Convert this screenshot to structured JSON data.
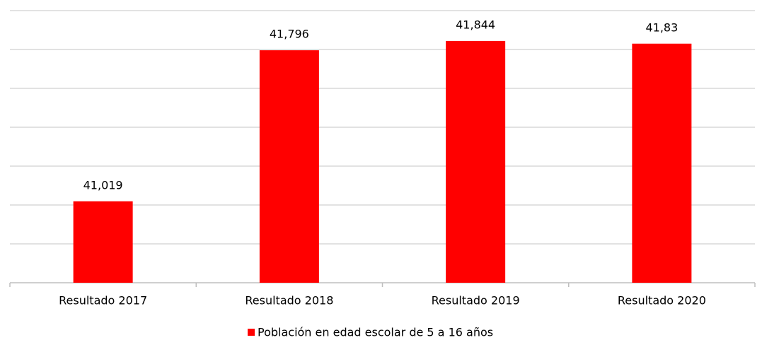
{
  "chart_data": {
    "type": "bar",
    "categories": [
      "Resultado 2017",
      "Resultado 2018",
      "Resultado 2019",
      "Resultado 2020"
    ],
    "series": [
      {
        "name": "Población en edad escolar de 5 a 16 años",
        "color": "#ff0000",
        "values": [
          41.019,
          41.796,
          41.844,
          41.83
        ],
        "value_labels": [
          "41,019",
          "41,796",
          "41,844",
          "41,83"
        ]
      }
    ],
    "ylim": [
      40.6,
      42.0
    ],
    "yticks": [
      40.6,
      40.8,
      41.0,
      41.2,
      41.4,
      41.6,
      41.8,
      42.0
    ],
    "grid": true,
    "legend": "bottom"
  }
}
